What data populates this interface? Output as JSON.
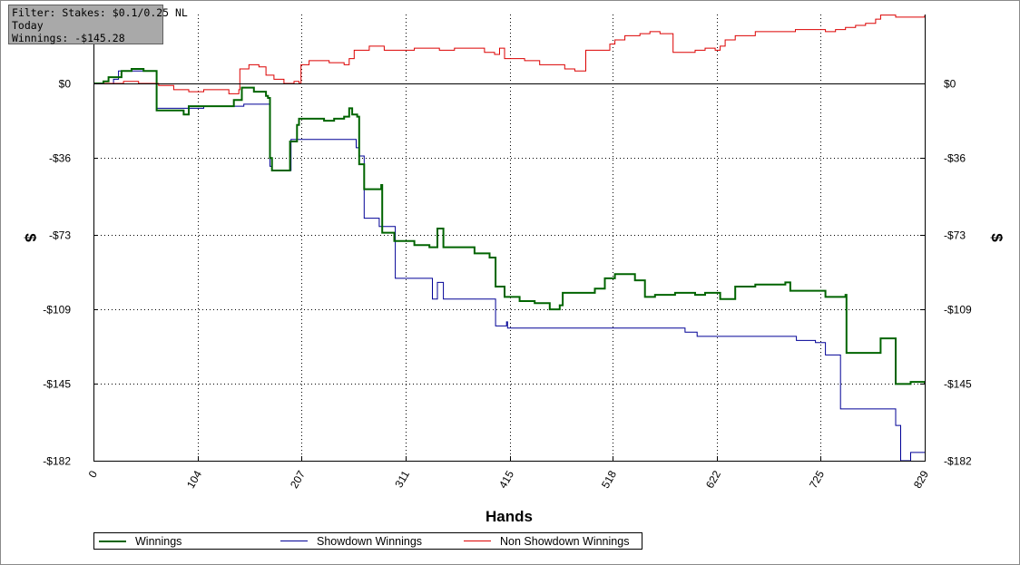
{
  "info_box": {
    "filter": "Filter: Stakes: $0.1/0.25 NL",
    "period": "Today",
    "winnings": "Winnings: -$145.28"
  },
  "chart_data": {
    "type": "line",
    "xlabel": "Hands",
    "ylabel": "$",
    "xlim": [
      0,
      829
    ],
    "ylim": [
      -182,
      33
    ],
    "x_ticks": [
      0,
      104,
      207,
      311,
      415,
      518,
      622,
      725,
      829
    ],
    "y_ticks": [
      0,
      -36,
      -73,
      -109,
      -145,
      -182
    ],
    "y_tick_labels": [
      "$0",
      "-$36",
      "-$73",
      "-$109",
      "-$145",
      "-$182"
    ],
    "grid": true,
    "legend_position": "bottom",
    "series": [
      {
        "name": "Winnings",
        "color": "#006400",
        "points": [
          [
            0,
            0
          ],
          [
            10,
            1
          ],
          [
            15,
            3
          ],
          [
            25,
            3
          ],
          [
            28,
            6
          ],
          [
            38,
            7
          ],
          [
            45,
            7
          ],
          [
            50,
            6
          ],
          [
            62,
            6
          ],
          [
            63,
            -13
          ],
          [
            75,
            -13
          ],
          [
            90,
            -15
          ],
          [
            95,
            -11
          ],
          [
            110,
            -11
          ],
          [
            135,
            -11
          ],
          [
            140,
            -8
          ],
          [
            145,
            -8
          ],
          [
            148,
            -2
          ],
          [
            155,
            -2
          ],
          [
            160,
            -4
          ],
          [
            170,
            -4
          ],
          [
            172,
            -6
          ],
          [
            174,
            -7
          ],
          [
            176,
            -36
          ],
          [
            178,
            -42
          ],
          [
            195,
            -42
          ],
          [
            196,
            -28
          ],
          [
            200,
            -28
          ],
          [
            203,
            -20
          ],
          [
            205,
            -17
          ],
          [
            215,
            -17
          ],
          [
            230,
            -18
          ],
          [
            240,
            -17
          ],
          [
            250,
            -16
          ],
          [
            255,
            -12
          ],
          [
            258,
            -15
          ],
          [
            263,
            -16
          ],
          [
            265,
            -39
          ],
          [
            270,
            -51
          ],
          [
            285,
            -51
          ],
          [
            287,
            -49
          ],
          [
            288,
            -72
          ],
          [
            300,
            -76
          ],
          [
            320,
            -78
          ],
          [
            335,
            -79
          ],
          [
            342,
            -79
          ],
          [
            343,
            -70
          ],
          [
            348,
            -70
          ],
          [
            349,
            -79
          ],
          [
            360,
            -79
          ],
          [
            380,
            -82
          ],
          [
            395,
            -84
          ],
          [
            400,
            -84
          ],
          [
            401,
            -98
          ],
          [
            410,
            -103
          ],
          [
            425,
            -105
          ],
          [
            440,
            -106
          ],
          [
            455,
            -109
          ],
          [
            465,
            -107
          ],
          [
            468,
            -101
          ],
          [
            480,
            -101
          ],
          [
            500,
            -99
          ],
          [
            510,
            -94
          ],
          [
            520,
            -92
          ],
          [
            540,
            -95
          ],
          [
            549,
            -95
          ],
          [
            550,
            -103
          ],
          [
            560,
            -102
          ],
          [
            580,
            -101
          ],
          [
            600,
            -102
          ],
          [
            610,
            -101
          ],
          [
            620,
            -101
          ],
          [
            625,
            -104
          ],
          [
            640,
            -98
          ],
          [
            660,
            -97
          ],
          [
            680,
            -97
          ],
          [
            690,
            -96
          ],
          [
            695,
            -100
          ],
          [
            712,
            -100
          ],
          [
            730,
            -103
          ],
          [
            745,
            -103
          ],
          [
            750,
            -102
          ],
          [
            751,
            -130
          ],
          [
            765,
            -130
          ],
          [
            785,
            -123
          ],
          [
            795,
            -123
          ],
          [
            800,
            -145
          ],
          [
            810,
            -145
          ],
          [
            815,
            -144
          ],
          [
            829,
            -145
          ]
        ]
      },
      {
        "name": "Showdown Winnings",
        "color": "#000096",
        "points": [
          [
            0,
            0
          ],
          [
            20,
            2
          ],
          [
            25,
            6
          ],
          [
            40,
            6
          ],
          [
            60,
            6
          ],
          [
            62,
            6
          ],
          [
            63,
            -12
          ],
          [
            90,
            -12
          ],
          [
            110,
            -11
          ],
          [
            130,
            -11
          ],
          [
            150,
            -10
          ],
          [
            170,
            -10
          ],
          [
            176,
            -40
          ],
          [
            178,
            -42
          ],
          [
            195,
            -42
          ],
          [
            197,
            -27
          ],
          [
            205,
            -27
          ],
          [
            230,
            -27
          ],
          [
            260,
            -27
          ],
          [
            262,
            -31
          ],
          [
            265,
            -35
          ],
          [
            270,
            -65
          ],
          [
            285,
            -69
          ],
          [
            300,
            -69
          ],
          [
            301,
            -94
          ],
          [
            330,
            -94
          ],
          [
            338,
            -104
          ],
          [
            342,
            -104
          ],
          [
            343,
            -96
          ],
          [
            348,
            -96
          ],
          [
            349,
            -104
          ],
          [
            390,
            -104
          ],
          [
            400,
            -104
          ],
          [
            401,
            -117
          ],
          [
            410,
            -117
          ],
          [
            412,
            -115
          ],
          [
            413,
            -118
          ],
          [
            470,
            -118
          ],
          [
            500,
            -118
          ],
          [
            530,
            -118
          ],
          [
            590,
            -120
          ],
          [
            600,
            -120
          ],
          [
            602,
            -122
          ],
          [
            660,
            -122
          ],
          [
            700,
            -122
          ],
          [
            701,
            -124
          ],
          [
            720,
            -125
          ],
          [
            730,
            -131
          ],
          [
            735,
            -131
          ],
          [
            745,
            -157
          ],
          [
            790,
            -157
          ],
          [
            800,
            -165
          ],
          [
            805,
            -182
          ],
          [
            815,
            -178
          ],
          [
            829,
            -178
          ]
        ]
      },
      {
        "name": "Non Showdown Winnings",
        "color": "#dc0000",
        "points": [
          [
            0,
            0
          ],
          [
            30,
            1
          ],
          [
            40,
            1
          ],
          [
            45,
            0
          ],
          [
            60,
            0
          ],
          [
            65,
            -1
          ],
          [
            80,
            -3
          ],
          [
            95,
            -4
          ],
          [
            110,
            -3
          ],
          [
            125,
            -3
          ],
          [
            135,
            -5
          ],
          [
            145,
            -3
          ],
          [
            146,
            7
          ],
          [
            155,
            9
          ],
          [
            165,
            8
          ],
          [
            172,
            4
          ],
          [
            180,
            2
          ],
          [
            190,
            0
          ],
          [
            200,
            1
          ],
          [
            205,
            0
          ],
          [
            207,
            9
          ],
          [
            215,
            11
          ],
          [
            235,
            10
          ],
          [
            250,
            9
          ],
          [
            255,
            12
          ],
          [
            260,
            16
          ],
          [
            275,
            18
          ],
          [
            290,
            16
          ],
          [
            320,
            17
          ],
          [
            345,
            16
          ],
          [
            360,
            17
          ],
          [
            390,
            15
          ],
          [
            400,
            14
          ],
          [
            405,
            17
          ],
          [
            410,
            12
          ],
          [
            430,
            11
          ],
          [
            445,
            9
          ],
          [
            470,
            7
          ],
          [
            480,
            6
          ],
          [
            490,
            6
          ],
          [
            491,
            16
          ],
          [
            510,
            16
          ],
          [
            515,
            19
          ],
          [
            520,
            21
          ],
          [
            530,
            23
          ],
          [
            545,
            24
          ],
          [
            555,
            25
          ],
          [
            565,
            24
          ],
          [
            577,
            24
          ],
          [
            578,
            15
          ],
          [
            600,
            16
          ],
          [
            610,
            17
          ],
          [
            620,
            16
          ],
          [
            625,
            18
          ],
          [
            630,
            21
          ],
          [
            640,
            23
          ],
          [
            660,
            25
          ],
          [
            675,
            25
          ],
          [
            700,
            26
          ],
          [
            730,
            25
          ],
          [
            740,
            26
          ],
          [
            750,
            27
          ],
          [
            760,
            28
          ],
          [
            770,
            29
          ],
          [
            780,
            31
          ],
          [
            785,
            33
          ],
          [
            790,
            33
          ],
          [
            800,
            32
          ],
          [
            815,
            32
          ],
          [
            829,
            33
          ]
        ]
      }
    ]
  },
  "legend": [
    {
      "name": "Winnings",
      "color": "#006400"
    },
    {
      "name": "Showdown Winnings",
      "color": "#000096"
    },
    {
      "name": "Non Showdown Winnings",
      "color": "#dc0000"
    }
  ]
}
